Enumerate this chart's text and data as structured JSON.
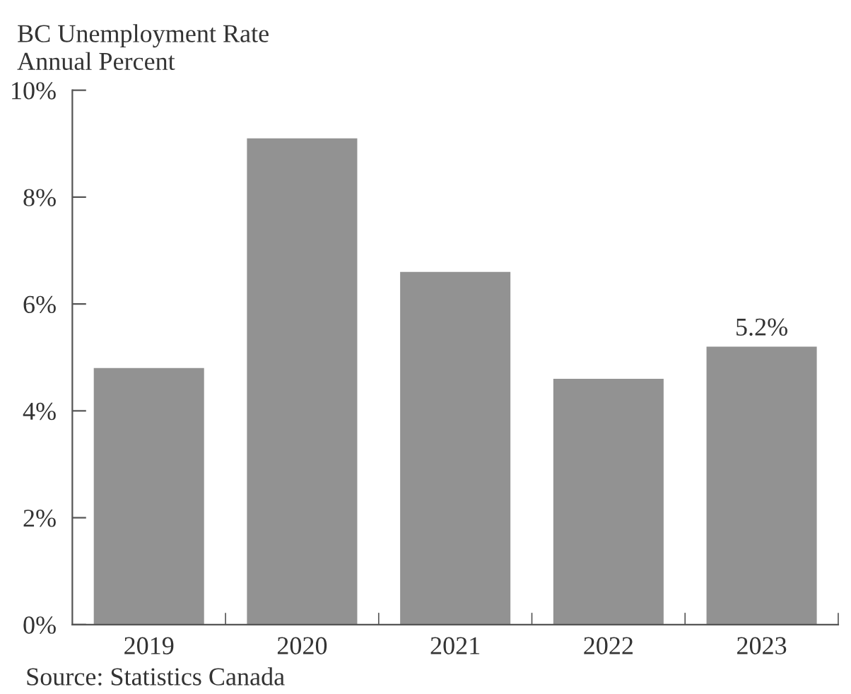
{
  "chart_data": {
    "type": "bar",
    "title": "BC Unemployment Rate",
    "subtitle": "Annual Percent",
    "categories": [
      "2019",
      "2020",
      "2021",
      "2022",
      "2023"
    ],
    "values": [
      4.8,
      9.1,
      6.6,
      4.6,
      5.2
    ],
    "value_labels": [
      null,
      null,
      null,
      null,
      "5.2%"
    ],
    "color": "#929292",
    "ylim": [
      0,
      10
    ],
    "yticks": [
      {
        "value": 0,
        "label": "0%"
      },
      {
        "value": 2,
        "label": "2%"
      },
      {
        "value": 4,
        "label": "4%"
      },
      {
        "value": 6,
        "label": "6%"
      },
      {
        "value": 8,
        "label": "8%"
      },
      {
        "value": 10,
        "label": "10%"
      }
    ],
    "grid": false,
    "annotations": [
      "Source: Statistics Canada"
    ]
  }
}
